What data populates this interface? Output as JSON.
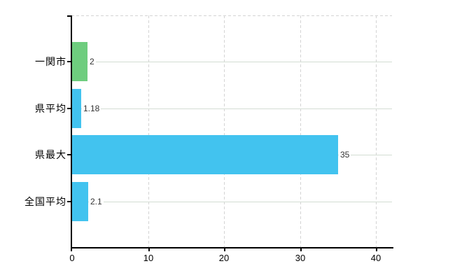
{
  "chart_data": {
    "type": "bar",
    "orientation": "horizontal",
    "categories": [
      "一関市",
      "県平均",
      "県最大",
      "全国平均"
    ],
    "values": [
      2,
      1.18,
      35,
      2.1
    ],
    "bar_colors": [
      "#6ecd7e",
      "#42c3ef",
      "#42c3ef",
      "#42c3ef"
    ],
    "x_ticks": [
      0,
      10,
      20,
      30,
      40
    ],
    "xlim": [
      0,
      40
    ],
    "grid": "on",
    "legend": "none",
    "gridline_color_horizontal": "#d3ddd3",
    "gridline_color_vertical_dashed": "#d4d4d4",
    "axis_color": "#000000",
    "value_label_color": "#333333"
  }
}
